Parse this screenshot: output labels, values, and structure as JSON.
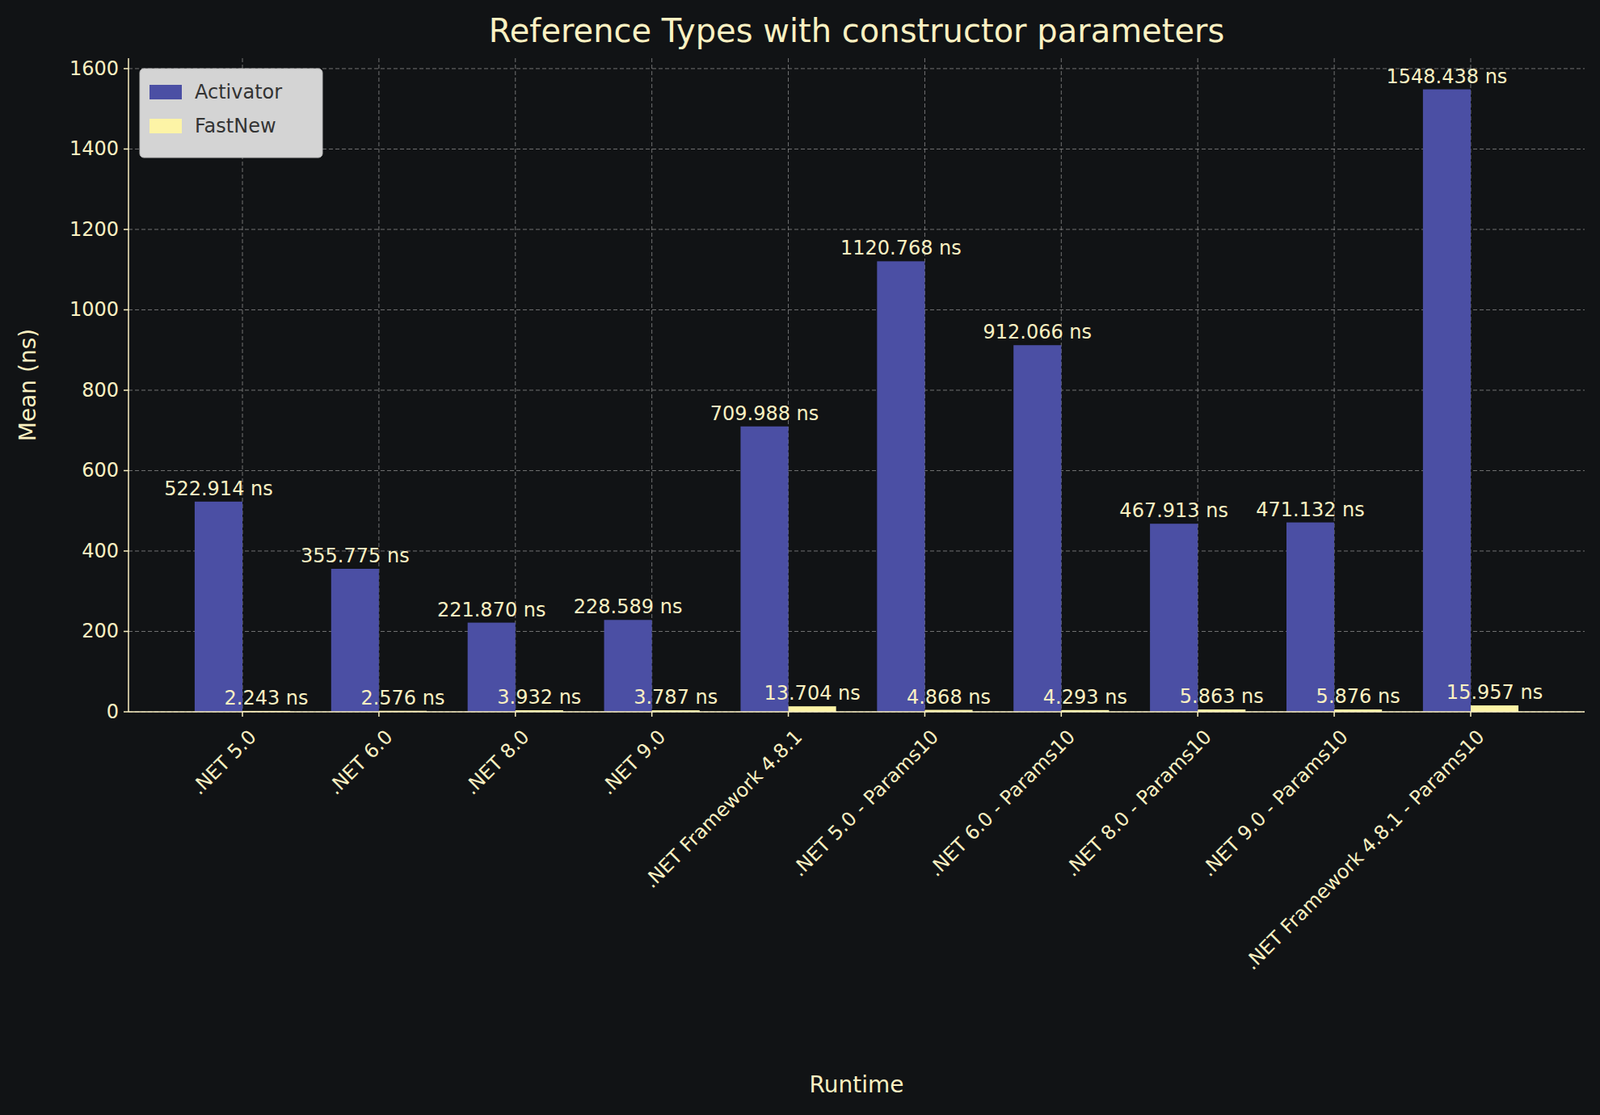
{
  "chart_data": {
    "type": "bar",
    "title": "Reference Types with constructor parameters",
    "x_label": "Runtime",
    "y_label": "Mean (ns)",
    "categories": [
      ".NET 5.0",
      ".NET 6.0",
      ".NET 8.0",
      ".NET 9.0",
      ".NET Framework 4.8.1",
      ".NET 5.0 - Params10",
      ".NET 6.0 - Params10",
      ".NET 8.0 - Params10",
      ".NET 9.0 - Params10",
      ".NET Framework 4.8.1 - Params10"
    ],
    "series": [
      {
        "name": "Activator",
        "color": "#4b4fa4",
        "values": [
          522.914,
          355.775,
          221.87,
          228.589,
          709.988,
          1120.768,
          912.066,
          467.913,
          471.132,
          1548.438
        ],
        "value_labels": [
          "522.914 ns",
          "355.775 ns",
          "221.870 ns",
          "228.589 ns",
          "709.988 ns",
          "1120.768 ns",
          "912.066 ns",
          "467.913 ns",
          "471.132 ns",
          "1548.438 ns"
        ]
      },
      {
        "name": "FastNew",
        "color": "#fdf4a6",
        "values": [
          2.243,
          2.576,
          3.932,
          3.787,
          13.704,
          4.868,
          4.293,
          5.863,
          5.876,
          15.957
        ],
        "value_labels": [
          "2.243 ns",
          "2.576 ns",
          "3.932 ns",
          "3.787 ns",
          "13.704 ns",
          "4.868 ns",
          "4.293 ns",
          "5.863 ns",
          "5.876 ns",
          "15.957 ns"
        ]
      }
    ],
    "ylim": [
      0,
      1626
    ],
    "yticks": [
      0,
      200,
      400,
      600,
      800,
      1000,
      1200,
      1400,
      1600
    ],
    "grid": true,
    "legend": "upper left",
    "data_labels": true
  }
}
